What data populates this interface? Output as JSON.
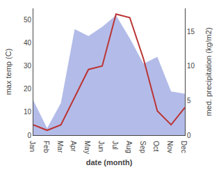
{
  "chart_data": {
    "type": "line",
    "categories": [
      "Jan",
      "Feb",
      "Mar",
      "Apr",
      "May",
      "Jun",
      "Jul",
      "Aug",
      "Sep",
      "Oct",
      "Nov",
      "Dec"
    ],
    "xlabel": "date (month)",
    "ylabel": "max temp (C)",
    "y2label": "med. precipitation (kg/m2)",
    "series": [
      {
        "type": "area",
        "color": "#b3bce8",
        "values": [
          15,
          3,
          14,
          46,
          43,
          47,
          52,
          42,
          31,
          34,
          19,
          18
        ]
      },
      {
        "type": "line",
        "color": "#bb3333",
        "axis": "y2",
        "values": [
          1.5,
          0.7,
          1.5,
          5.5,
          9.5,
          10.0,
          17.5,
          17.0,
          11.0,
          3.5,
          1.5,
          4.0
        ]
      }
    ],
    "ylim": [
      0,
      55
    ],
    "yticks": [
      0,
      10,
      20,
      30,
      40,
      50
    ],
    "y2lim": [
      0,
      18.333
    ],
    "y2ticks": [
      0,
      5,
      10,
      15
    ],
    "grid": false
  }
}
